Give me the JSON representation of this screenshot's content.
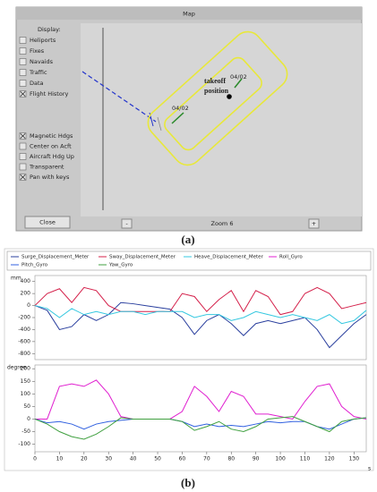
{
  "map_window": {
    "title": "Map",
    "display_label": "Display:",
    "layers": [
      {
        "label": "Heliports",
        "checked": false
      },
      {
        "label": "Fixes",
        "checked": false
      },
      {
        "label": "Navaids",
        "checked": false
      },
      {
        "label": "Traffic",
        "checked": false
      },
      {
        "label": "Data",
        "checked": false
      },
      {
        "label": "Flight History",
        "checked": true
      }
    ],
    "options": [
      {
        "label": "Magnetic Hdgs",
        "checked": true
      },
      {
        "label": "Center on Acft",
        "checked": false
      },
      {
        "label": "Aircraft Hdg Up",
        "checked": false
      },
      {
        "label": "Transparent",
        "checked": false
      },
      {
        "label": "Pan with keys",
        "checked": true
      }
    ],
    "close_button": "Close",
    "zoom_out": "-",
    "zoom_label": "Zoom 6",
    "zoom_in": "+",
    "waypoint_labels": [
      "04/02",
      "04/02"
    ],
    "takeoff_label": [
      "takeoff",
      "position"
    ]
  },
  "panel_labels": [
    "(a)",
    "(b)"
  ],
  "chart_data": [
    {
      "type": "line",
      "ylabel": "mm",
      "x": [
        0,
        5,
        10,
        15,
        20,
        25,
        30,
        35,
        40,
        45,
        50,
        55,
        60,
        65,
        70,
        75,
        80,
        85,
        90,
        95,
        100,
        105,
        110,
        115,
        120,
        125,
        130,
        135
      ],
      "xlim": [
        0,
        135
      ],
      "ylim": [
        -900,
        500
      ],
      "yticks": [
        400,
        200,
        0,
        -200,
        -400,
        -600,
        -800
      ],
      "series": [
        {
          "name": "Surge_Displacement_Meter",
          "color": "#2a3f9e",
          "values": [
            0,
            -80,
            -400,
            -350,
            -150,
            -250,
            -150,
            50,
            30,
            0,
            -30,
            -60,
            -200,
            -480,
            -250,
            -150,
            -300,
            -500,
            -300,
            -250,
            -300,
            -250,
            -200,
            -400,
            -700,
            -500,
            -300,
            -150
          ]
        },
        {
          "name": "Sway_Displacement_Meter",
          "color": "#d4204a",
          "values": [
            0,
            200,
            280,
            50,
            300,
            250,
            0,
            -100,
            -100,
            -100,
            -100,
            -100,
            200,
            150,
            -100,
            100,
            250,
            -100,
            250,
            150,
            -150,
            -100,
            200,
            300,
            200,
            -50,
            0,
            50
          ]
        },
        {
          "name": "Heave_Displacement_Meter",
          "color": "#35c8e0",
          "values": [
            0,
            -50,
            -200,
            -50,
            -150,
            -100,
            -150,
            -100,
            -100,
            -150,
            -100,
            -100,
            -100,
            -200,
            -150,
            -150,
            -250,
            -200,
            -100,
            -150,
            -200,
            -150,
            -200,
            -250,
            -150,
            -300,
            -250,
            -80
          ]
        }
      ]
    },
    {
      "type": "line",
      "ylabel": "degree",
      "xlabel": "s",
      "x": [
        0,
        5,
        10,
        15,
        20,
        25,
        30,
        35,
        40,
        45,
        50,
        55,
        60,
        65,
        70,
        75,
        80,
        85,
        90,
        95,
        100,
        105,
        110,
        115,
        120,
        125,
        130,
        135
      ],
      "xlim": [
        0,
        135
      ],
      "xticks": [
        0,
        10,
        20,
        30,
        40,
        50,
        60,
        70,
        80,
        90,
        100,
        110,
        120,
        130
      ],
      "ylim": [
        -130,
        215
      ],
      "yticks": [
        200,
        150,
        100,
        50,
        0,
        -50,
        -100
      ],
      "series": [
        {
          "name": "Roll_Gyro",
          "color": "#e020d0",
          "values": [
            0,
            0,
            130,
            140,
            130,
            155,
            100,
            10,
            0,
            0,
            0,
            0,
            30,
            130,
            90,
            30,
            110,
            90,
            20,
            20,
            10,
            0,
            70,
            130,
            140,
            50,
            10,
            0
          ]
        },
        {
          "name": "Pitch_Gyro",
          "color": "#3060e0",
          "values": [
            0,
            -15,
            -10,
            -20,
            -40,
            -20,
            -10,
            -5,
            0,
            0,
            0,
            0,
            -10,
            -30,
            -20,
            -30,
            -25,
            -30,
            -20,
            -10,
            -15,
            -10,
            -10,
            -30,
            -40,
            -20,
            0,
            5
          ]
        },
        {
          "name": "Yaw_Gyro",
          "color": "#40a040",
          "values": [
            0,
            -20,
            -50,
            -70,
            -80,
            -60,
            -30,
            5,
            0,
            0,
            0,
            0,
            -10,
            -45,
            -30,
            -10,
            -40,
            -50,
            -30,
            0,
            5,
            10,
            -10,
            -30,
            -50,
            -10,
            0,
            5
          ]
        }
      ]
    }
  ]
}
